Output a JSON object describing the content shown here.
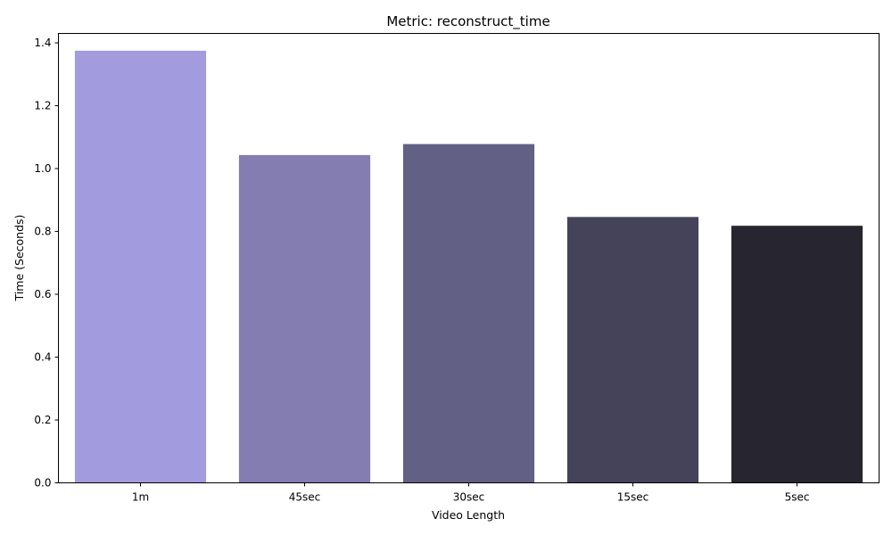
{
  "chart_data": {
    "type": "bar",
    "title": "Metric: reconstruct_time",
    "xlabel": "Video Length",
    "ylabel": "Time (Seconds)",
    "categories": [
      "1m",
      "45sec",
      "30sec",
      "15sec",
      "5sec"
    ],
    "values": [
      1.375,
      1.043,
      1.078,
      0.846,
      0.818
    ],
    "colors": [
      "#a29bde",
      "#837db1",
      "#636085",
      "#45435a",
      "#27252f"
    ],
    "ylim": [
      0,
      1.43
    ],
    "yticks": [
      0.0,
      0.2,
      0.4,
      0.6,
      0.8,
      1.0,
      1.2,
      1.4
    ],
    "ytick_labels": [
      "0.0",
      "0.2",
      "0.4",
      "0.6",
      "0.8",
      "1.0",
      "1.2",
      "1.4"
    ],
    "grid": false,
    "legend": "none"
  }
}
